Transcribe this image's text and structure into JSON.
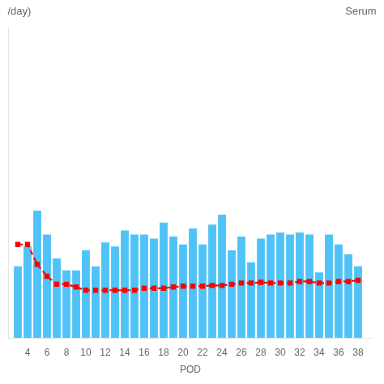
{
  "chart_data": {
    "type": "bar",
    "xlabel": "POD",
    "annotations": [
      "/day)",
      "Serum"
    ],
    "x": [
      3,
      4,
      5,
      6,
      7,
      8,
      9,
      10,
      11,
      12,
      13,
      14,
      15,
      16,
      17,
      18,
      19,
      20,
      21,
      22,
      23,
      24,
      25,
      26,
      27,
      28,
      29,
      30,
      31,
      32,
      33,
      34,
      35,
      36,
      37,
      38
    ],
    "series": [
      {
        "type": "bar",
        "color": "#4FC3F7",
        "values": [
          1800,
          2300,
          3200,
          2600,
          2000,
          1700,
          1700,
          2200,
          1800,
          2400,
          2300,
          2700,
          2600,
          2600,
          2500,
          2900,
          2550,
          2350,
          2750,
          2350,
          2850,
          3100,
          2200,
          2550,
          1900,
          2500,
          2600,
          2650,
          2600,
          2650,
          2600,
          1650,
          2600,
          2350,
          2100,
          1800
        ]
      },
      {
        "type": "line",
        "color": "#FF0000",
        "marker": "square",
        "line_style": "dashed",
        "values": [
          2350,
          2350,
          1850,
          1550,
          1350,
          1350,
          1280,
          1200,
          1200,
          1200,
          1200,
          1200,
          1200,
          1250,
          1250,
          1250,
          1280,
          1300,
          1300,
          1300,
          1320,
          1320,
          1350,
          1380,
          1380,
          1400,
          1380,
          1380,
          1380,
          1420,
          1420,
          1380,
          1380,
          1420,
          1420,
          1450
        ]
      }
    ],
    "xlim": [
      2.0,
      39.5
    ],
    "xticks": [
      4,
      6,
      8,
      10,
      12,
      14,
      16,
      18,
      20,
      22,
      24,
      26,
      28,
      30,
      32,
      34,
      36,
      38
    ],
    "ylim": [
      0,
      7800
    ],
    "tick_labels": "x",
    "grid": false
  }
}
